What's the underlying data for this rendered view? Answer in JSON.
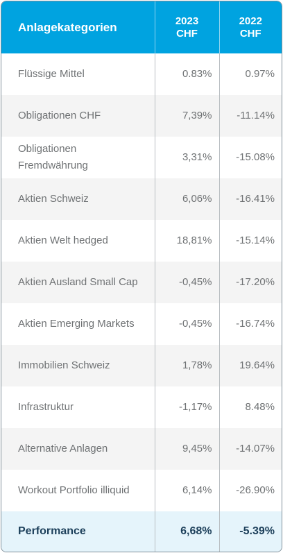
{
  "header": {
    "category": "Anlagekategorien",
    "col2023_year": "2023",
    "col2023_unit": "CHF",
    "col2022_year": "2022",
    "col2022_unit": "CHF"
  },
  "rows": [
    {
      "category": "Flüssige Mittel",
      "v2023": "0.83%",
      "v2022": "0.97%"
    },
    {
      "category": "Obligationen CHF",
      "v2023": "7,39%",
      "v2022": "-11.14%"
    },
    {
      "category": "Obligationen Fremdwährung",
      "v2023": "3,31%",
      "v2022": "-15.08%"
    },
    {
      "category": "Aktien Schweiz",
      "v2023": "6,06%",
      "v2022": "-16.41%"
    },
    {
      "category": "Aktien Welt hedged",
      "v2023": "18,81%",
      "v2022": "-15.14%"
    },
    {
      "category": "Aktien Ausland Small Cap",
      "v2023": "-0,45%",
      "v2022": "-17.20%"
    },
    {
      "category": "Aktien Emerging Markets",
      "v2023": "-0,45%",
      "v2022": "-16.74%"
    },
    {
      "category": "Immobilien Schweiz",
      "v2023": "1,78%",
      "v2022": "19.64%"
    },
    {
      "category": "Infrastruktur",
      "v2023": "-1,17%",
      "v2022": "8.48%"
    },
    {
      "category": "Alternative Anlagen",
      "v2023": "9,45%",
      "v2022": "-14.07%"
    },
    {
      "category": "Workout Portfolio illiquid",
      "v2023": "6,14%",
      "v2022": "-26.90%"
    }
  ],
  "performance": {
    "category": "Performance",
    "v2023": "6,68%",
    "v2022": "-5.39%"
  },
  "colors": {
    "header_bg": "#00a3e0",
    "performance_bg": "#e5f4fb",
    "alt_row_bg": "#f4f4f4"
  }
}
